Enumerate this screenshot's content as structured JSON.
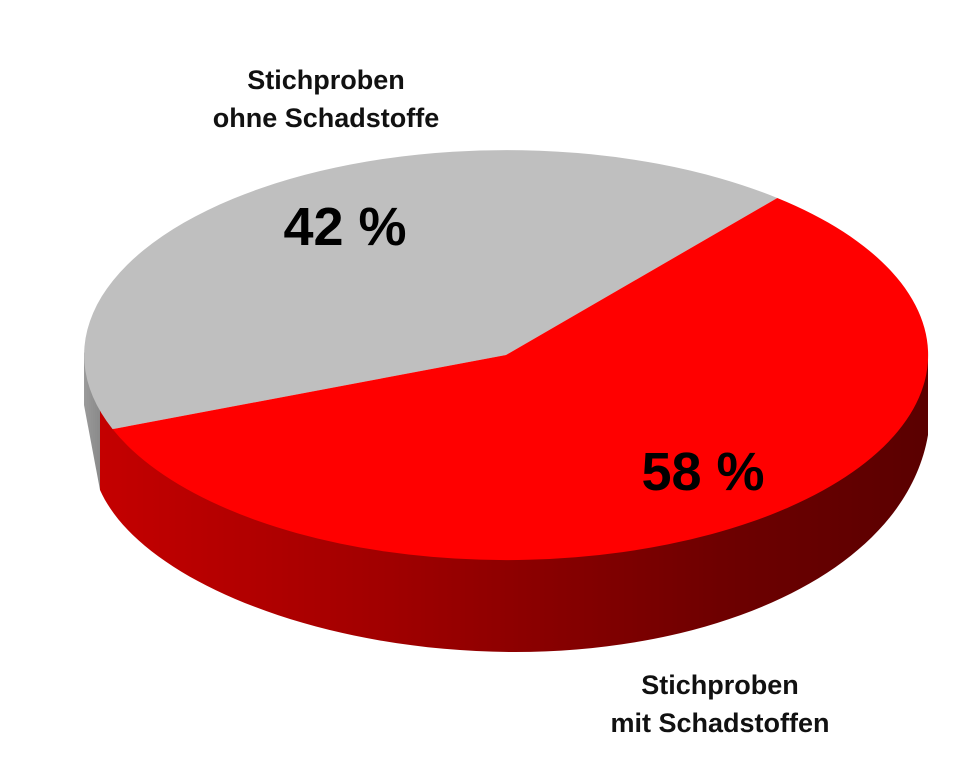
{
  "chart_data": {
    "type": "pie",
    "style": "3d",
    "slices": [
      {
        "label_lines": [
          "Stichproben",
          "ohne Schadstoffe"
        ],
        "value": 42,
        "value_label": "42 %",
        "color": "#bfbfbf"
      },
      {
        "label_lines": [
          "Stichproben",
          "mit Schadstoffen"
        ],
        "value": 58,
        "value_label": "58 %",
        "color": "#ff0000"
      }
    ]
  }
}
